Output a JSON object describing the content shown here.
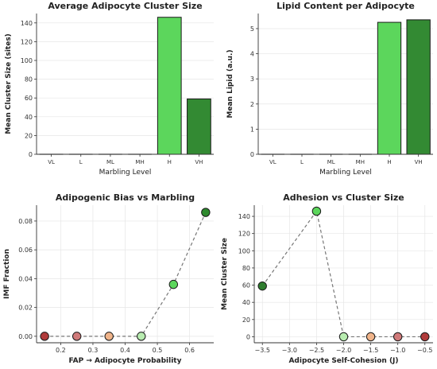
{
  "chart_data": [
    {
      "type": "bar",
      "title": "Average Adipocyte Cluster Size",
      "xlabel": "Marbling Level",
      "ylabel": "Mean Cluster Size (sites)",
      "categories": [
        "VL",
        "L",
        "ML",
        "MH",
        "H",
        "VH"
      ],
      "values": [
        0,
        0,
        0,
        0,
        146,
        59
      ],
      "ylim": [
        0,
        150
      ],
      "yticks": [
        0,
        20,
        40,
        60,
        80,
        100,
        120,
        140
      ],
      "grid": true,
      "colors": [
        "#cccccc",
        "#cccccc",
        "#cccccc",
        "#cccccc",
        "#5cd65c",
        "#338a33"
      ]
    },
    {
      "type": "bar",
      "title": "Lipid Content per Adipocyte",
      "xlabel": "Marbling Level",
      "ylabel": "Mean Lipid (a.u.)",
      "categories": [
        "VL",
        "L",
        "ML",
        "MH",
        "H",
        "VH"
      ],
      "values": [
        0,
        0,
        0,
        0,
        5.25,
        5.35
      ],
      "ylim": [
        0,
        5.6
      ],
      "yticks": [
        0,
        1,
        2,
        3,
        4,
        5
      ],
      "grid": true,
      "colors": [
        "#cccccc",
        "#cccccc",
        "#cccccc",
        "#cccccc",
        "#5cd65c",
        "#338a33"
      ]
    },
    {
      "type": "line",
      "title": "Adipogenic Bias vs Marbling",
      "xlabel": "FAP → Adipocyte Probability",
      "ylabel": "IMF Fraction",
      "x": [
        0.15,
        0.25,
        0.35,
        0.45,
        0.55,
        0.65
      ],
      "y": [
        0.0,
        0.0,
        0.0,
        0.0,
        0.036,
        0.086
      ],
      "xlim": [
        0.125,
        0.675
      ],
      "ylim": [
        -0.0045,
        0.091
      ],
      "xticks": [
        0.2,
        0.3,
        0.4,
        0.5,
        0.6
      ],
      "yticks": [
        0.0,
        0.02,
        0.04,
        0.06,
        0.08
      ],
      "grid": true,
      "line_color": "#777777",
      "marker_colors": [
        "#b03a3a",
        "#d07a7a",
        "#f0b48a",
        "#b8ecb0",
        "#5cd65c",
        "#2e8a2e"
      ]
    },
    {
      "type": "line",
      "title": "Adhesion vs Cluster Size",
      "xlabel": "Adipocyte Self-Cohesion (J)",
      "ylabel": "Mean Cluster Size",
      "x": [
        -3.5,
        -2.5,
        -2.0,
        -1.5,
        -1.0,
        -0.5
      ],
      "y": [
        59,
        146,
        0,
        0,
        0,
        0
      ],
      "xlim": [
        -3.65,
        -0.35
      ],
      "ylim": [
        -7,
        153
      ],
      "xticks": [
        -3.5,
        -3.0,
        -2.5,
        -2.0,
        -1.5,
        -1.0,
        -0.5
      ],
      "yticks": [
        0,
        20,
        40,
        60,
        80,
        100,
        120,
        140
      ],
      "grid": true,
      "line_color": "#777777",
      "marker_colors": [
        "#2e7d2e",
        "#5cd65c",
        "#b8ecb0",
        "#f0b48a",
        "#d07a7a",
        "#b03a3a"
      ]
    }
  ]
}
